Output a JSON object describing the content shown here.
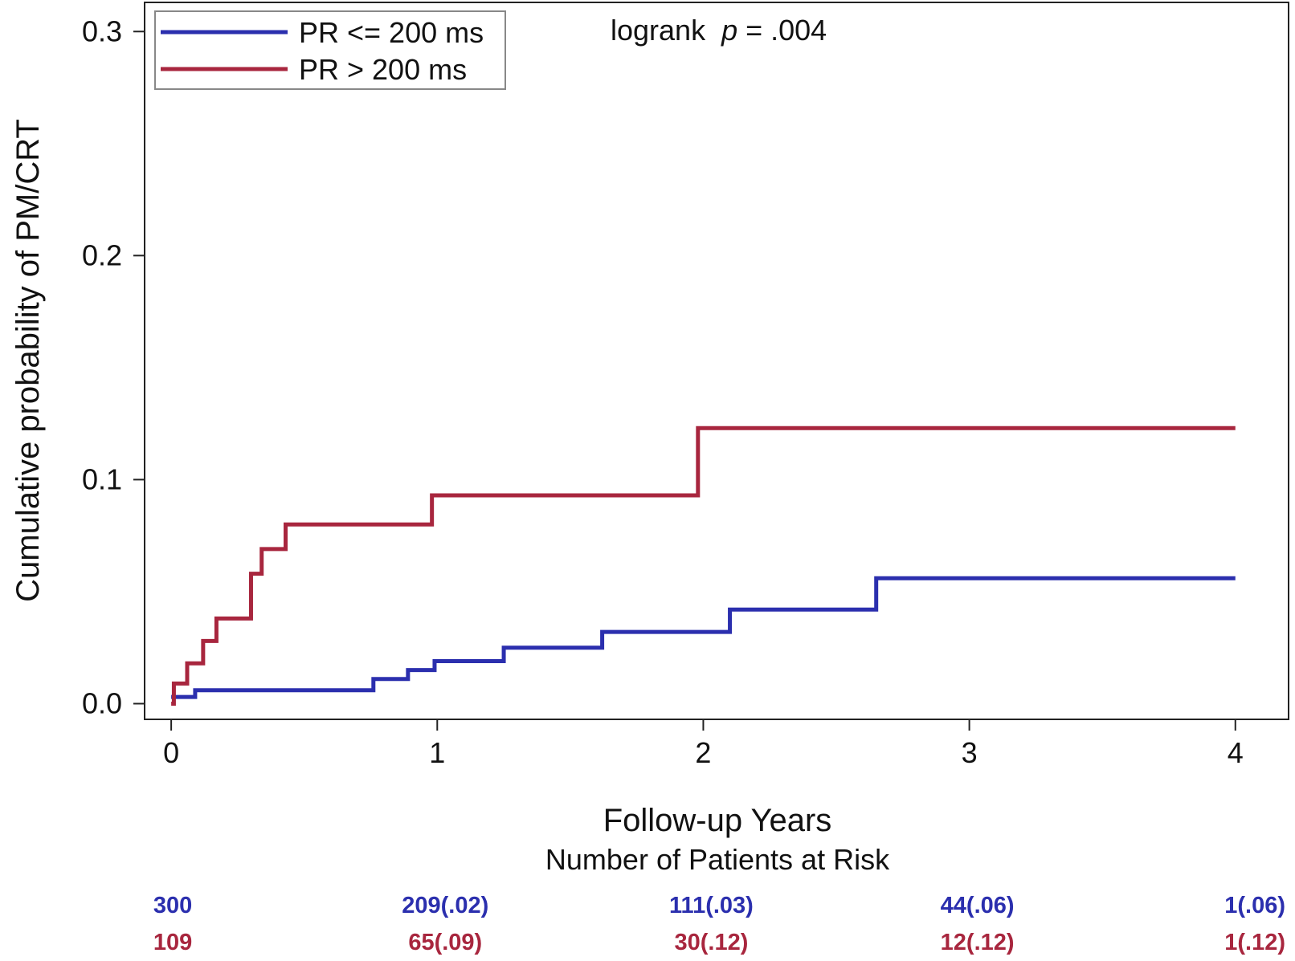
{
  "chart_data": {
    "type": "line",
    "step": true,
    "xlabel": "Follow-up Years",
    "ylabel": "Cumulative probability of PM/CRT",
    "xlim": [
      -0.1,
      4.2
    ],
    "ylim": [
      -0.007,
      0.313
    ],
    "xticks": [
      0,
      1,
      2,
      3,
      4
    ],
    "xtick_labels": [
      "0",
      "1",
      "2",
      "3",
      "4"
    ],
    "yticks": [
      0.0,
      0.1,
      0.2,
      0.3
    ],
    "ytick_labels": [
      "0.0",
      "0.1",
      "0.2",
      "0.3"
    ],
    "grid": false,
    "legend_position": "top-left",
    "annotation": {
      "prefix": "logrank  ",
      "p": "p",
      "suffix": " = .004"
    },
    "series": [
      {
        "name": "PR <= 200 ms",
        "color": "#2b2fae",
        "x": [
          0,
          0.09,
          0.76,
          0.89,
          0.99,
          1.25,
          1.62,
          2.1,
          2.65,
          4.0
        ],
        "y": [
          0.003,
          0.006,
          0.011,
          0.015,
          0.019,
          0.025,
          0.032,
          0.042,
          0.056,
          0.056
        ]
      },
      {
        "name": "PR > 200 ms",
        "color": "#a8263e",
        "x": [
          0,
          0.01,
          0.06,
          0.12,
          0.17,
          0.3,
          0.34,
          0.43,
          0.98,
          1.98,
          4.0
        ],
        "y": [
          0.0,
          0.009,
          0.018,
          0.028,
          0.038,
          0.058,
          0.069,
          0.08,
          0.093,
          0.123,
          0.123
        ]
      }
    ],
    "risk_table": {
      "title": "Number of Patients at Risk",
      "x": [
        0,
        1,
        2,
        3,
        4
      ],
      "rows": [
        {
          "color": "#2b2fae",
          "values": [
            "300",
            "209(.02)",
            "111(.03)",
            "44(.06)",
            "1(.06)"
          ]
        },
        {
          "color": "#a8263e",
          "values": [
            "109",
            "65(.09)",
            "30(.12)",
            "12(.12)",
            "1(.12)"
          ]
        }
      ]
    }
  }
}
